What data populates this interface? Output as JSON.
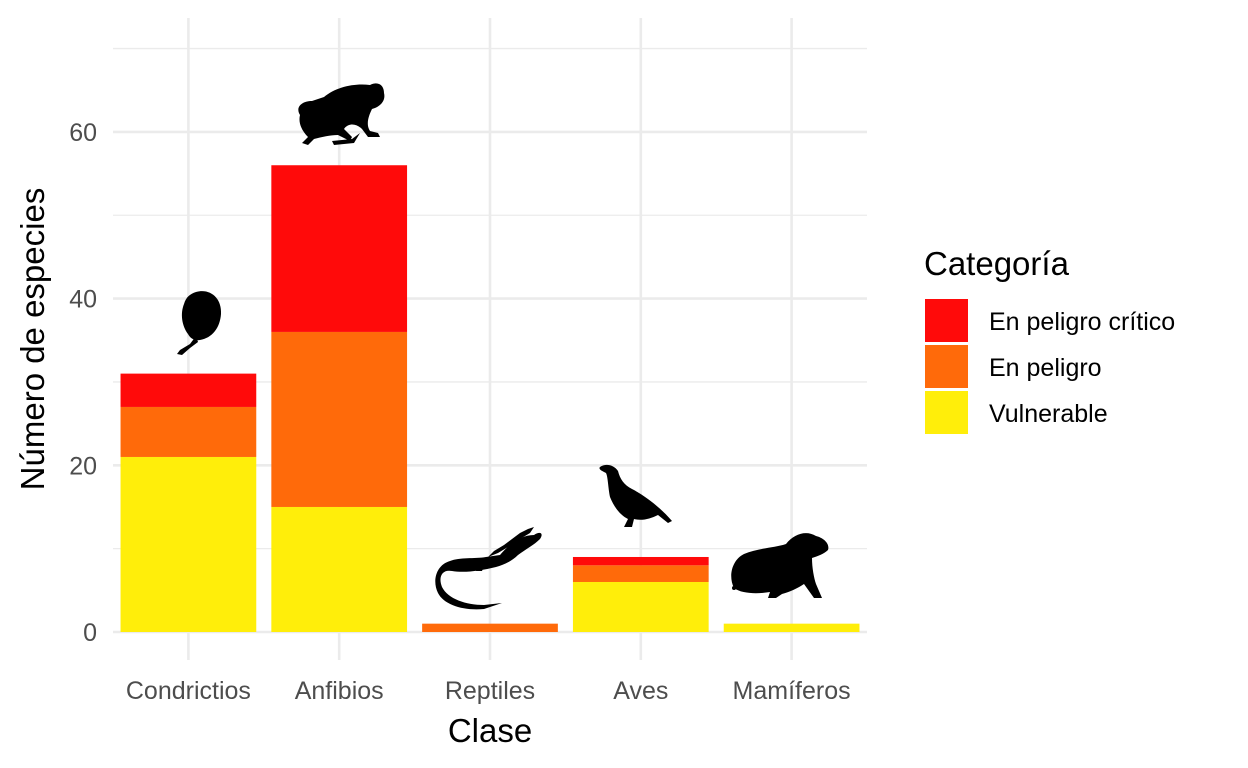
{
  "chart_data": {
    "type": "bar",
    "stacked": true,
    "categories": [
      "Condrictios",
      "Anfibios",
      "Reptiles",
      "Aves",
      "Mamíferos"
    ],
    "series": [
      {
        "name": "Vulnerable",
        "color": "#FFEE0A",
        "values": [
          21,
          15,
          0,
          6,
          1
        ]
      },
      {
        "name": "En peligro",
        "color": "#FF6A0A",
        "values": [
          6,
          21,
          1,
          2,
          0
        ]
      },
      {
        "name": "En peligro crítico",
        "color": "#FF0A0A",
        "values": [
          4,
          20,
          0,
          1,
          0
        ]
      }
    ],
    "xlabel": "Clase",
    "ylabel": "Número de especies",
    "ylim": [
      0,
      71
    ],
    "yticks": [
      0,
      20,
      40,
      60
    ],
    "grid": true,
    "legend": {
      "title": "Categoría",
      "position": "right",
      "entries": [
        "En peligro crítico",
        "En peligro",
        "Vulnerable"
      ]
    },
    "icons": [
      "shark-egg-case-icon",
      "frog-icon",
      "iguana-icon",
      "bird-icon",
      "rodent-icon"
    ]
  }
}
